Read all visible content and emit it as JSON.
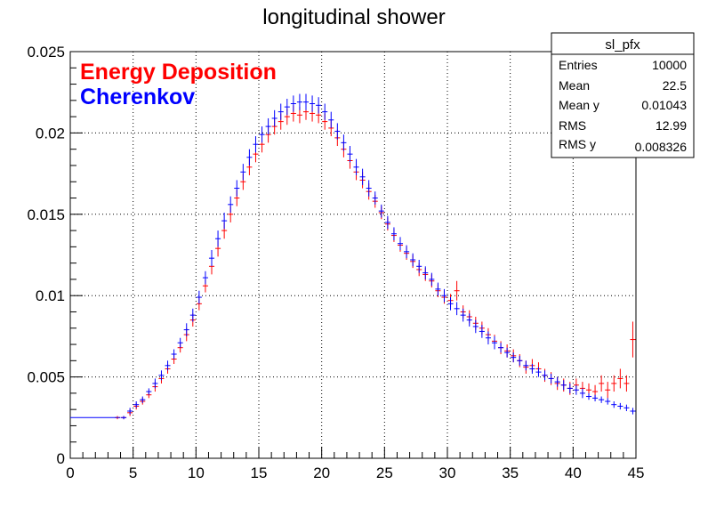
{
  "chart_data": {
    "type": "scatter",
    "title": "longitudinal shower",
    "xlabel": "",
    "ylabel": "",
    "xlim": [
      0,
      45
    ],
    "ylim": [
      0,
      0.025
    ],
    "grid": true,
    "x_ticks": [
      0,
      5,
      10,
      15,
      20,
      25,
      30,
      35,
      40,
      45
    ],
    "y_ticks": [
      0,
      0.005,
      0.01,
      0.015,
      0.02,
      0.025
    ],
    "x_tick_labels": [
      "0",
      "5",
      "10",
      "15",
      "20",
      "25",
      "30",
      "35",
      "40",
      "45"
    ],
    "y_tick_labels": [
      "0",
      "0.005",
      "0.01",
      "0.015",
      "0.02",
      "0.025"
    ],
    "legend_position": "top-left",
    "series": [
      {
        "name": "Energy Deposition",
        "color": "#ff0000",
        "x": [
          3.75,
          4.25,
          4.75,
          5.25,
          5.75,
          6.25,
          6.75,
          7.25,
          7.75,
          8.25,
          8.75,
          9.25,
          9.75,
          10.25,
          10.75,
          11.25,
          11.75,
          12.25,
          12.75,
          13.25,
          13.75,
          14.25,
          14.75,
          15.25,
          15.75,
          16.25,
          16.75,
          17.25,
          17.75,
          18.25,
          18.75,
          19.25,
          19.75,
          20.25,
          20.75,
          21.25,
          21.75,
          22.25,
          22.75,
          23.25,
          23.75,
          24.25,
          24.75,
          25.25,
          25.75,
          26.25,
          26.75,
          27.25,
          27.75,
          28.25,
          28.75,
          29.25,
          29.75,
          30.25,
          30.75,
          31.25,
          31.75,
          32.25,
          32.75,
          33.25,
          33.75,
          34.25,
          34.75,
          35.25,
          35.75,
          36.25,
          36.75,
          37.25,
          37.75,
          38.25,
          38.75,
          39.25,
          39.75,
          40.25,
          40.75,
          41.25,
          41.75,
          42.25,
          42.75,
          43.25,
          43.75,
          44.25,
          44.75
        ],
        "y": [
          0.0025,
          0.0025,
          0.0028,
          0.0032,
          0.0035,
          0.0039,
          0.0044,
          0.0049,
          0.0055,
          0.0061,
          0.0068,
          0.0076,
          0.0085,
          0.0095,
          0.0106,
          0.0118,
          0.0129,
          0.014,
          0.015,
          0.016,
          0.017,
          0.0179,
          0.0187,
          0.0193,
          0.0199,
          0.0204,
          0.0207,
          0.021,
          0.0212,
          0.0211,
          0.0213,
          0.0212,
          0.0211,
          0.0207,
          0.0203,
          0.0197,
          0.019,
          0.0183,
          0.0176,
          0.0171,
          0.0164,
          0.0158,
          0.0151,
          0.0144,
          0.0137,
          0.0131,
          0.0126,
          0.0121,
          0.0116,
          0.0113,
          0.0109,
          0.0103,
          0.0099,
          0.0097,
          0.0103,
          0.009,
          0.0087,
          0.0083,
          0.008,
          0.0076,
          0.0072,
          0.0068,
          0.0066,
          0.0063,
          0.006,
          0.0056,
          0.0057,
          0.0055,
          0.0051,
          0.0049,
          0.0046,
          0.0045,
          0.0043,
          0.0045,
          0.0043,
          0.0042,
          0.0041,
          0.0046,
          0.0042,
          0.0046,
          0.0049,
          0.0046,
          0.0073
        ],
        "yerr": [
          0.0001,
          0.0001,
          0.0002,
          0.0002,
          0.0002,
          0.0002,
          0.0003,
          0.0003,
          0.0003,
          0.0003,
          0.0003,
          0.0004,
          0.0004,
          0.0004,
          0.0004,
          0.0005,
          0.0005,
          0.0005,
          0.0005,
          0.0005,
          0.0005,
          0.0005,
          0.0005,
          0.0005,
          0.0005,
          0.0005,
          0.0005,
          0.0005,
          0.0005,
          0.0005,
          0.0005,
          0.0005,
          0.0005,
          0.0005,
          0.0005,
          0.0005,
          0.0005,
          0.0005,
          0.0005,
          0.0005,
          0.0005,
          0.0004,
          0.0004,
          0.0004,
          0.0004,
          0.0004,
          0.0004,
          0.0004,
          0.0004,
          0.0004,
          0.0004,
          0.0004,
          0.0004,
          0.0004,
          0.0006,
          0.0004,
          0.0004,
          0.0004,
          0.0004,
          0.0004,
          0.0004,
          0.0004,
          0.0004,
          0.0004,
          0.0004,
          0.0004,
          0.0004,
          0.0004,
          0.0004,
          0.0004,
          0.0004,
          0.0004,
          0.0004,
          0.0004,
          0.0004,
          0.0004,
          0.0004,
          0.0005,
          0.0005,
          0.0005,
          0.0006,
          0.0005,
          0.0011
        ]
      },
      {
        "name": "Cherenkov",
        "color": "#0000ff",
        "x": [
          0,
          4.25,
          4.75,
          5.25,
          5.75,
          6.25,
          6.75,
          7.25,
          7.75,
          8.25,
          8.75,
          9.25,
          9.75,
          10.25,
          10.75,
          11.25,
          11.75,
          12.25,
          12.75,
          13.25,
          13.75,
          14.25,
          14.75,
          15.25,
          15.75,
          16.25,
          16.75,
          17.25,
          17.75,
          18.25,
          18.75,
          19.25,
          19.75,
          20.25,
          20.75,
          21.25,
          21.75,
          22.25,
          22.75,
          23.25,
          23.75,
          24.25,
          24.75,
          25.25,
          25.75,
          26.25,
          26.75,
          27.25,
          27.75,
          28.25,
          28.75,
          29.25,
          29.75,
          30.25,
          30.75,
          31.25,
          31.75,
          32.25,
          32.75,
          33.25,
          33.75,
          34.25,
          34.75,
          35.25,
          35.75,
          36.25,
          36.75,
          37.25,
          37.75,
          38.25,
          38.75,
          39.25,
          39.75,
          40.25,
          40.75,
          41.25,
          41.75,
          42.25,
          42.75,
          43.25,
          43.75,
          44.25,
          44.75
        ],
        "y": [
          0.0025,
          0.0025,
          0.0029,
          0.0033,
          0.0036,
          0.0041,
          0.0046,
          0.0051,
          0.0057,
          0.0064,
          0.0071,
          0.0079,
          0.0088,
          0.0099,
          0.0111,
          0.0123,
          0.0135,
          0.0146,
          0.0156,
          0.0166,
          0.0176,
          0.0185,
          0.0193,
          0.0199,
          0.0204,
          0.0209,
          0.0213,
          0.0216,
          0.0218,
          0.0219,
          0.0219,
          0.0218,
          0.0217,
          0.0213,
          0.0208,
          0.0201,
          0.0194,
          0.0187,
          0.0179,
          0.0173,
          0.0166,
          0.016,
          0.0152,
          0.0145,
          0.0138,
          0.0132,
          0.0127,
          0.0122,
          0.0118,
          0.0114,
          0.011,
          0.0104,
          0.01,
          0.0095,
          0.0092,
          0.0088,
          0.0085,
          0.0081,
          0.0078,
          0.0074,
          0.0071,
          0.0068,
          0.0065,
          0.0062,
          0.006,
          0.0057,
          0.0055,
          0.0053,
          0.0051,
          0.0049,
          0.0047,
          0.0045,
          0.0043,
          0.0042,
          0.004,
          0.0038,
          0.0037,
          0.0036,
          0.0035,
          0.0033,
          0.0032,
          0.0031,
          0.0029
        ],
        "yerr": [
          0,
          0.0001,
          0.0002,
          0.0002,
          0.0002,
          0.0002,
          0.0003,
          0.0003,
          0.0003,
          0.0003,
          0.0003,
          0.0004,
          0.0004,
          0.0004,
          0.0004,
          0.0005,
          0.0005,
          0.0005,
          0.0005,
          0.0005,
          0.0005,
          0.0005,
          0.0005,
          0.0005,
          0.0005,
          0.0005,
          0.0005,
          0.0005,
          0.0005,
          0.0005,
          0.0005,
          0.0005,
          0.0005,
          0.0005,
          0.0005,
          0.0005,
          0.0005,
          0.0005,
          0.0005,
          0.0005,
          0.0005,
          0.0004,
          0.0004,
          0.0004,
          0.0004,
          0.0004,
          0.0004,
          0.0004,
          0.0004,
          0.0004,
          0.0004,
          0.0004,
          0.0004,
          0.0004,
          0.0004,
          0.0004,
          0.0004,
          0.0004,
          0.0004,
          0.0004,
          0.0004,
          0.0003,
          0.0003,
          0.0003,
          0.0003,
          0.0003,
          0.0003,
          0.0003,
          0.0003,
          0.0003,
          0.0003,
          0.0003,
          0.0003,
          0.0003,
          0.0003,
          0.0002,
          0.0002,
          0.0002,
          0.0002,
          0.0002,
          0.0002,
          0.0002,
          0.0002
        ]
      }
    ],
    "stats_box": {
      "title": "sl_pfx",
      "rows": [
        {
          "label": "Entries",
          "value": "10000"
        },
        {
          "label": "Mean",
          "value": "22.5"
        },
        {
          "label": "Mean y",
          "value": "0.01043"
        },
        {
          "label": "RMS",
          "value": "12.99"
        },
        {
          "label": "RMS y",
          "value": "0.008326"
        }
      ]
    }
  }
}
